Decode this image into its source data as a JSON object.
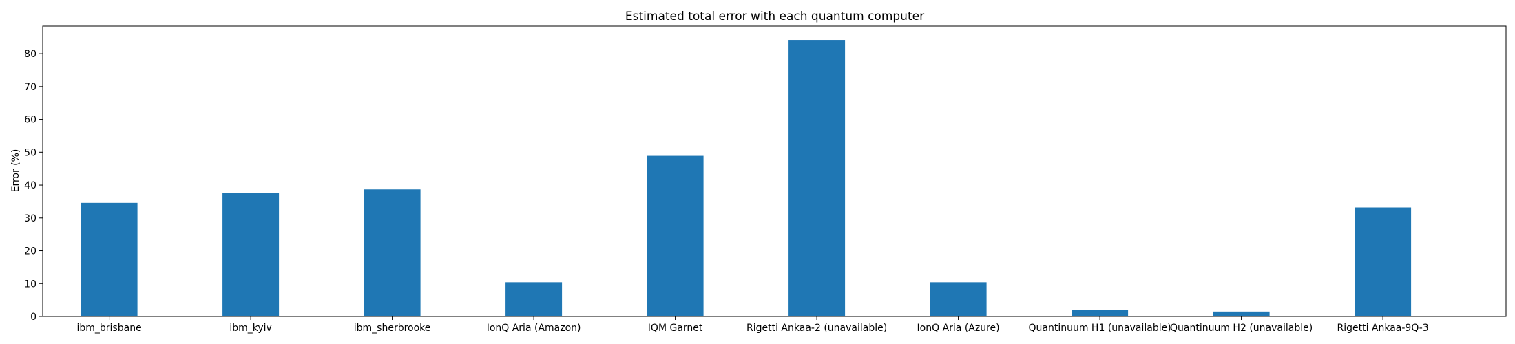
{
  "chart_data": {
    "type": "bar",
    "title": "Estimated total error with each quantum computer",
    "xlabel": "",
    "ylabel": "Error (%)",
    "categories": [
      "ibm_brisbane",
      "ibm_kyiv",
      "ibm_sherbrooke",
      "IonQ Aria (Amazon)",
      "IQM Garnet",
      "Rigetti Ankaa-2 (unavailable)",
      "IonQ Aria (Azure)",
      "Quantinuum H1 (unavailable)",
      "Quantinuum H2 (unavailable)",
      "Rigetti Ankaa-9Q-3"
    ],
    "values": [
      34.6,
      37.6,
      38.7,
      10.4,
      48.9,
      84.2,
      10.4,
      1.9,
      1.5,
      33.2
    ],
    "ylim": [
      0,
      88.4
    ],
    "yticks": [
      0,
      10,
      20,
      30,
      40,
      50,
      60,
      70,
      80
    ],
    "grid": false,
    "bar_color": "#1f77b4"
  }
}
